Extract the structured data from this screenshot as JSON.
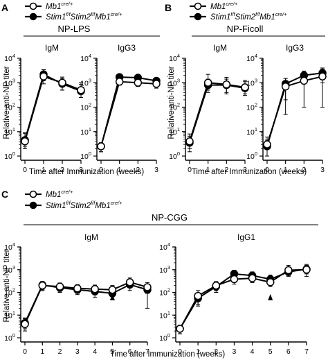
{
  "colors": {
    "wild_type": "#ffffff",
    "knockout": "#000000",
    "ink": "#000000"
  },
  "chart_data": [
    {
      "type": "line",
      "panel": "A",
      "condition": "NP-LPS",
      "subtitle": "IgM",
      "xlabel": "Time after Immunization (weeks)",
      "ylabel": "Relative anti-NP titer",
      "xticks": [
        0,
        1,
        2,
        3
      ],
      "xlim": [
        0,
        3
      ],
      "ylim": [
        1,
        10000
      ],
      "yscale": "log",
      "yticks": [
        "10^0",
        "10^1",
        "10^2",
        "10^3",
        "10^4"
      ],
      "grid": false,
      "series": [
        {
          "name": "Mb1 cre/+",
          "marker": "open-circle",
          "x": [
            0,
            1,
            2,
            3
          ],
          "y": [
            4,
            1800,
            1000,
            500
          ],
          "err": [
            [
              2,
              900,
              500,
              250
            ],
            [
              5,
              1000,
              700,
              500
            ]
          ]
        },
        {
          "name": "Stim1 f/f Stim2 f/f Mb1 cre/+",
          "marker": "filled-circle",
          "x": [
            0,
            1,
            2,
            3
          ],
          "y": [
            4.5,
            2200,
            900,
            450
          ],
          "err": [
            [
              2,
              1000,
              400,
              200
            ],
            [
              4,
              1200,
              600,
              400
            ]
          ]
        }
      ]
    },
    {
      "type": "line",
      "panel": "A",
      "condition": "NP-LPS",
      "subtitle": "IgG3",
      "xticks": [
        0,
        1,
        2,
        3
      ],
      "xlim": [
        0,
        3
      ],
      "ylim": [
        1,
        10000
      ],
      "yscale": "log",
      "series": [
        {
          "name": "Mb1 cre/+",
          "marker": "open-circle",
          "x": [
            0,
            1,
            2,
            3
          ],
          "y": [
            2.5,
            1100,
            1000,
            900
          ],
          "err": [
            [
              1,
              300,
              300,
              300
            ],
            [
              1,
              300,
              300,
              300
            ]
          ]
        },
        {
          "name": "Stim1 f/f Stim2 f/f Mb1 cre/+",
          "marker": "filled-circle",
          "x": [
            0,
            1,
            2,
            3
          ],
          "y": [
            2.5,
            1700,
            1600,
            1200
          ],
          "err": [
            [
              1,
              400,
              400,
              300
            ],
            [
              1,
              400,
              400,
              300
            ]
          ]
        }
      ]
    },
    {
      "type": "line",
      "panel": "B",
      "condition": "NP-Ficoll",
      "subtitle": "IgM",
      "xlabel": "Time after Immunization (weeks)",
      "ylabel": "Relative anti-NP titer",
      "xticks": [
        0,
        1,
        2,
        3
      ],
      "xlim": [
        0,
        3
      ],
      "ylim": [
        1,
        10000
      ],
      "yscale": "log",
      "series": [
        {
          "name": "Mb1 cre/+",
          "marker": "open-circle",
          "x": [
            0,
            1,
            2,
            3
          ],
          "y": [
            4,
            1000,
            850,
            650
          ],
          "err": [
            [
              2,
              500,
              500,
              300
            ],
            [
              4,
              1200,
              800,
              600
            ]
          ]
        },
        {
          "name": "Stim1 f/f Stim2 f/f Mb1 cre/+",
          "marker": "filled-circle",
          "x": [
            0,
            1,
            2,
            3
          ],
          "y": [
            3.5,
            800,
            800,
            600
          ],
          "err": [
            [
              2,
              400,
              400,
              300
            ],
            [
              3,
              600,
              600,
              500
            ]
          ]
        }
      ]
    },
    {
      "type": "line",
      "panel": "B",
      "condition": "NP-Ficoll",
      "subtitle": "IgG3",
      "xticks": [
        0,
        1,
        2,
        3
      ],
      "xlim": [
        0,
        3
      ],
      "ylim": [
        1,
        10000
      ],
      "yscale": "log",
      "series": [
        {
          "name": "Mb1 cre/+",
          "marker": "open-circle",
          "x": [
            0,
            1,
            2,
            3
          ],
          "y": [
            3,
            700,
            1200,
            1800
          ],
          "err": [
            [
              2,
              650,
              1100,
              1700
            ],
            [
              3,
              800,
              1200,
              1800
            ]
          ]
        },
        {
          "name": "Stim1 f/f Stim2 f/f Mb1 cre/+",
          "marker": "filled-circle",
          "x": [
            0,
            1,
            2,
            3
          ],
          "y": [
            2.5,
            900,
            2000,
            2500
          ],
          "err": [
            [
              1.5,
              700,
              1000,
              1500
            ],
            [
              2,
              600,
              1000,
              1500
            ]
          ]
        }
      ]
    },
    {
      "type": "line",
      "panel": "C",
      "condition": "NP-CGG",
      "subtitle": "IgM",
      "xlabel": "Time after Immunization (weeks)",
      "ylabel": "Relative anti-NP titer",
      "xticks": [
        0,
        1,
        2,
        3,
        4,
        5,
        6,
        7
      ],
      "xlim": [
        0,
        7
      ],
      "ylim": [
        1,
        10000
      ],
      "yscale": "log",
      "annotation": {
        "type": "arrowhead",
        "x": 5
      },
      "series": [
        {
          "name": "Mb1 cre/+",
          "marker": "open-circle",
          "x": [
            0,
            1,
            2,
            3,
            4,
            5,
            6,
            7
          ],
          "y": [
            4,
            200,
            180,
            150,
            140,
            130,
            280,
            170
          ],
          "err": [
            [
              2,
              80,
              70,
              60,
              60,
              60,
              120,
              80
            ],
            [
              3,
              100,
              80,
              70,
              70,
              70,
              150,
              100
            ]
          ]
        },
        {
          "name": "Stim1 f/f Stim2 f/f Mb1 cre/+",
          "marker": "filled-circle",
          "x": [
            0,
            1,
            2,
            3,
            4,
            5,
            6,
            7
          ],
          "y": [
            4.5,
            210,
            160,
            130,
            110,
            90,
            220,
            130
          ],
          "err": [
            [
              2,
              80,
              60,
              50,
              50,
              40,
              100,
              110
            ],
            [
              3,
              90,
              70,
              60,
              50,
              50,
              120,
              100
            ]
          ]
        }
      ]
    },
    {
      "type": "line",
      "panel": "C",
      "condition": "NP-CGG",
      "subtitle": "IgG1",
      "xticks": [
        0,
        1,
        2,
        3,
        4,
        5,
        6,
        7
      ],
      "xlim": [
        0,
        7
      ],
      "ylim": [
        1,
        10000
      ],
      "yscale": "log",
      "annotation": {
        "type": "arrowhead",
        "x": 5
      },
      "series": [
        {
          "name": "Mb1 cre/+",
          "marker": "open-circle",
          "x": [
            0,
            1,
            2,
            3,
            4,
            5,
            6,
            7
          ],
          "y": [
            2.5,
            70,
            200,
            380,
            420,
            280,
            950,
            1000
          ],
          "err": [
            [
              1,
              40,
              80,
              150,
              150,
              100,
              400,
              500
            ],
            [
              1,
              50,
              100,
              200,
              200,
              150,
              600,
              700
            ]
          ]
        },
        {
          "name": "Stim1 f/f Stim2 f/f Mb1 cre/+",
          "marker": "filled-circle",
          "x": [
            0,
            1,
            2,
            3,
            4,
            5,
            6,
            7
          ],
          "y": [
            2.5,
            55,
            180,
            650,
            550,
            380,
            800,
            1050
          ],
          "err": [
            [
              1,
              30,
              80,
              200,
              200,
              150,
              300,
              400
            ],
            [
              1,
              40,
              100,
              300,
              250,
              200,
              400,
              500
            ]
          ]
        }
      ]
    }
  ],
  "panels": {
    "A": {
      "letter": "A",
      "legend_mb1": "Mb1",
      "legend_cre": "cre/+",
      "legend_stim1": "Stim1",
      "legend_ff": "f/f",
      "legend_stim2": "Stim2",
      "condition": "NP-LPS",
      "sub1": "IgM",
      "sub2": "IgG3"
    },
    "B": {
      "letter": "B",
      "legend_mb1": "Mb1",
      "legend_cre": "cre/+",
      "legend_stim1": "Stim1",
      "legend_ff": "f/f",
      "legend_stim2": "Stim2",
      "condition": "NP-Ficoll",
      "sub1": "IgM",
      "sub2": "IgG3"
    },
    "C": {
      "letter": "C",
      "legend_mb1": "Mb1",
      "legend_cre": "cre/+",
      "legend_stim1": "Stim1",
      "legend_ff": "f/f",
      "legend_stim2": "Stim2",
      "condition": "NP-CGG",
      "sub1": "IgM",
      "sub2": "IgG1"
    }
  },
  "axes": {
    "ylabel": "Relative anti-NP titer",
    "xlabel": "Time after Immunization (weeks)",
    "ytick_base": "10",
    "ytick_exps": [
      "0",
      "1",
      "2",
      "3",
      "4"
    ],
    "xticks_short": [
      "0",
      "1",
      "2",
      "3"
    ],
    "xticks_long": [
      "0",
      "1",
      "2",
      "3",
      "4",
      "5",
      "6",
      "7"
    ]
  }
}
